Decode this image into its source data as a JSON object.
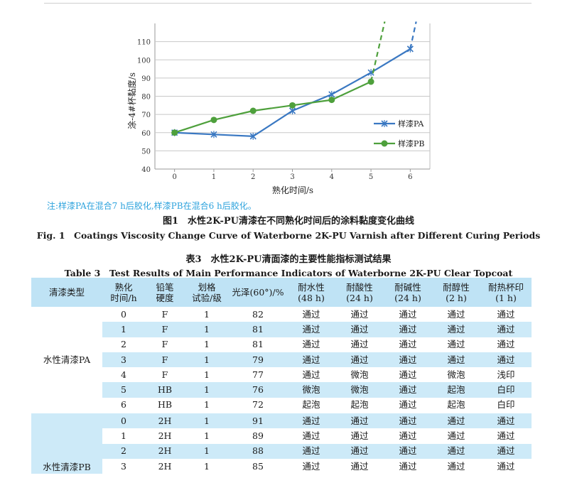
{
  "chart_data": {
    "type": "line",
    "xlabel": "熟化时间/s",
    "ylabel": "涂-4#杯黏度/s",
    "ylim": [
      40,
      120
    ],
    "yticks": [
      40,
      50,
      60,
      70,
      80,
      90,
      100,
      110
    ],
    "xlim": [
      -0.5,
      6.5
    ],
    "xticks": [
      0,
      1,
      2,
      3,
      4,
      5,
      6
    ],
    "grid": true,
    "legend": "right",
    "series": [
      {
        "name": "样漆PA",
        "color": "#3a78c2",
        "marker": "x",
        "x": [
          0,
          1,
          2,
          3,
          4,
          5,
          6
        ],
        "y": [
          60,
          59,
          58,
          72,
          81,
          93,
          106
        ],
        "extension": {
          "x": [
            6,
            6.15
          ],
          "y": [
            106,
            121
          ]
        }
      },
      {
        "name": "样漆PB",
        "color": "#4ea03c",
        "marker": "circle",
        "x": [
          0,
          1,
          2,
          3,
          4,
          5
        ],
        "y": [
          60,
          67,
          72,
          75,
          78,
          88
        ],
        "extension": {
          "x": [
            5,
            5.35
          ],
          "y": [
            88,
            121
          ]
        }
      }
    ]
  },
  "note": "注:样漆PA在混合7 h后胶化,样漆PB在混合6 h后胶化。",
  "figure": {
    "title_cn": "图1　水性2K-PU清漆在不同熟化时间后的涂料黏度变化曲线",
    "title_en": "Fig. 1　Coatings Viscosity Change Curve of Waterborne 2K-PU Varnish after Different Curing Periods"
  },
  "table": {
    "title_cn": "表3　水性2K-PU清面漆的主要性能指标测试结果",
    "title_en": "Table 3　Test Results of Main Performance Indicators of Waterborne 2K-PU Clear Topcoat",
    "headers": [
      [
        "清漆类型"
      ],
      [
        "熟化",
        "时间/h"
      ],
      [
        "铅笔",
        "硬度"
      ],
      [
        "划格",
        "试验/级"
      ],
      [
        "光泽(60°)/%"
      ],
      [
        "耐水性",
        "(48 h)"
      ],
      [
        "耐酸性",
        "(24 h)"
      ],
      [
        "耐碱性",
        "(24 h)"
      ],
      [
        "耐醇性",
        "(2 h)"
      ],
      [
        "耐热杯印",
        "(1 h)"
      ]
    ],
    "group_a": "水性清漆PA",
    "group_b": "水性清漆PB",
    "rows_a": [
      [
        "0",
        "F",
        "1",
        "82",
        "通过",
        "通过",
        "通过",
        "通过",
        "通过"
      ],
      [
        "1",
        "F",
        "1",
        "81",
        "通过",
        "通过",
        "通过",
        "通过",
        "通过"
      ],
      [
        "2",
        "F",
        "1",
        "81",
        "通过",
        "通过",
        "通过",
        "通过",
        "通过"
      ],
      [
        "3",
        "F",
        "1",
        "79",
        "通过",
        "通过",
        "通过",
        "通过",
        "通过"
      ],
      [
        "4",
        "F",
        "1",
        "77",
        "通过",
        "微泡",
        "通过",
        "微泡",
        "浅印"
      ],
      [
        "5",
        "HB",
        "1",
        "76",
        "微泡",
        "微泡",
        "通过",
        "起泡",
        "白印"
      ],
      [
        "6",
        "HB",
        "1",
        "72",
        "起泡",
        "起泡",
        "通过",
        "起泡",
        "白印"
      ]
    ],
    "rows_b": [
      [
        "0",
        "2H",
        "1",
        "91",
        "通过",
        "通过",
        "通过",
        "通过",
        "通过"
      ],
      [
        "1",
        "2H",
        "1",
        "89",
        "通过",
        "通过",
        "通过",
        "通过",
        "通过"
      ],
      [
        "2",
        "2H",
        "1",
        "88",
        "通过",
        "通过",
        "通过",
        "通过",
        "通过"
      ],
      [
        "3",
        "2H",
        "1",
        "85",
        "通过",
        "通过",
        "通过",
        "通过",
        "通过"
      ]
    ]
  }
}
